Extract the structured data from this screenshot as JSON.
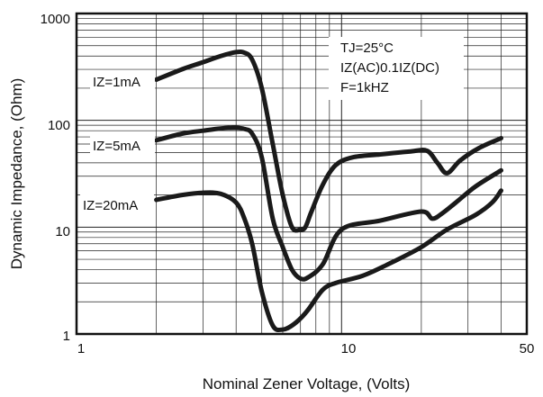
{
  "chart_data": {
    "type": "line",
    "x_scale": "log",
    "y_scale": "log",
    "xlim": [
      1,
      50
    ],
    "ylim": [
      1,
      1000
    ],
    "grid": true,
    "xlabel": "Nominal Zener Voltage, (Volts)",
    "ylabel": "Dynamic Impedance, (Ohm)",
    "x_ticks": [
      "1",
      "10",
      "50"
    ],
    "y_ticks": [
      "1",
      "10",
      "100",
      "1000"
    ],
    "conditions": [
      "TJ=25°C",
      "IZ(AC)0.1IZ(DC)",
      "F=1kHZ"
    ],
    "series": [
      {
        "name": "IZ=1mA",
        "x": [
          2,
          2.5,
          3,
          3.5,
          4,
          4.3,
          4.6,
          5,
          5.5,
          6,
          6.5,
          7,
          7.3,
          7.7,
          8.5,
          9.5,
          11,
          14,
          18,
          21,
          23,
          25,
          28,
          33,
          40
        ],
        "y": [
          240,
          300,
          350,
          400,
          435,
          430,
          370,
          200,
          60,
          20,
          10,
          9.5,
          10,
          14,
          25,
          38,
          45,
          48,
          51,
          52,
          40,
          32,
          42,
          55,
          68
        ]
      },
      {
        "name": "IZ=5mA",
        "x": [
          2,
          2.5,
          3,
          3.5,
          4,
          4.3,
          4.6,
          5,
          5.5,
          6,
          6.5,
          7,
          7.5,
          8.5,
          10,
          14,
          20,
          22,
          24,
          27,
          32,
          40
        ],
        "y": [
          65,
          75,
          80,
          84,
          85,
          83,
          75,
          45,
          12,
          6.5,
          4,
          3.3,
          3.4,
          4.5,
          9.5,
          11.5,
          14,
          12,
          13.5,
          17,
          24,
          34
        ]
      },
      {
        "name": "IZ=20mA",
        "x": [
          2,
          2.5,
          3,
          3.5,
          4,
          4.3,
          4.6,
          5,
          5.5,
          6,
          6.5,
          7,
          7.5,
          8.5,
          9.5,
          12,
          15,
          20,
          25,
          32,
          37,
          40
        ],
        "y": [
          18,
          20,
          21,
          20.5,
          17,
          12,
          7,
          2.5,
          1.2,
          1.1,
          1.2,
          1.4,
          1.7,
          2.6,
          3,
          3.5,
          4.5,
          6.5,
          9.5,
          13,
          17,
          22
        ]
      }
    ]
  }
}
